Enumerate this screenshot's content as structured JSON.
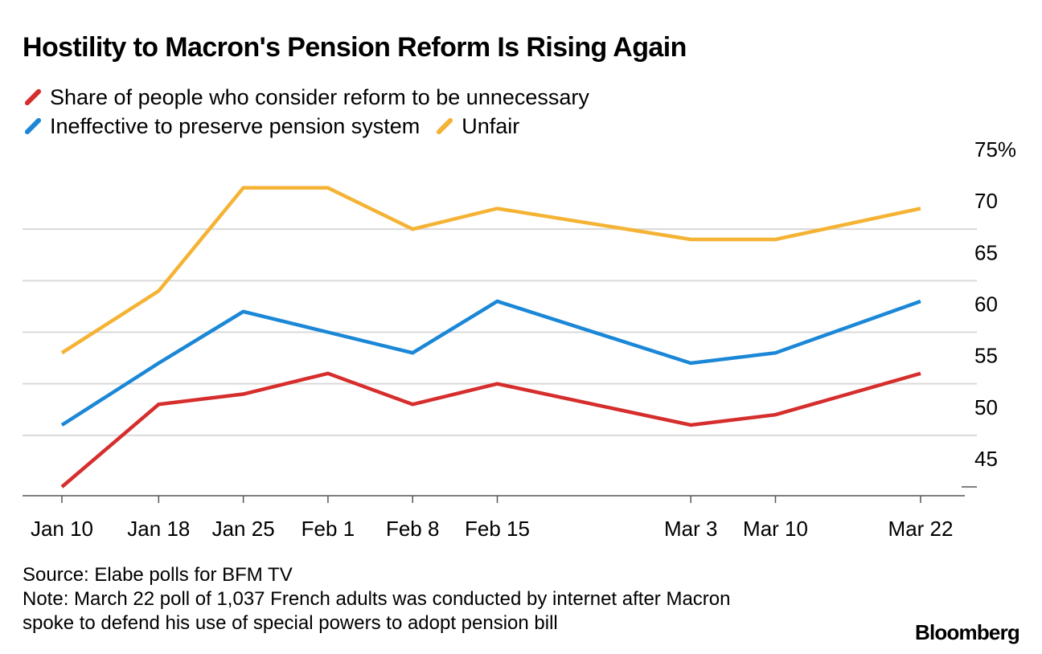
{
  "chart_data": {
    "type": "line",
    "title": "Hostility to Macron's Pension Reform Is Rising Again",
    "categories": [
      "Jan 10",
      "Jan 18",
      "Jan 25",
      "Feb 1",
      "Feb 8",
      "Feb 15",
      "Mar 3",
      "Mar 10",
      "Mar 22"
    ],
    "x_days": [
      0,
      8,
      15,
      22,
      29,
      36,
      52,
      59,
      71
    ],
    "y_ticks": [
      "75%",
      "70",
      "65",
      "60",
      "55",
      "50",
      "45"
    ],
    "y_tick_values": [
      75,
      70,
      65,
      60,
      55,
      50,
      45
    ],
    "ylim": [
      45,
      75
    ],
    "xlabel": "",
    "ylabel": "",
    "series": [
      {
        "name": "Share of people who consider reform to be unnecessary",
        "color": "#d62d2d",
        "values": [
          45,
          53,
          54,
          56,
          53,
          55,
          51,
          52,
          56
        ]
      },
      {
        "name": "Ineffective to preserve pension system",
        "color": "#1b87d7",
        "values": [
          51,
          57,
          62,
          60,
          58,
          63,
          57,
          58,
          63
        ]
      },
      {
        "name": "Unfair",
        "color": "#f5b335",
        "values": [
          58,
          64,
          74,
          74,
          70,
          72,
          69,
          69,
          72
        ]
      }
    ]
  },
  "footer": {
    "source": "Source: Elabe polls for BFM TV",
    "note_line1": "Note: March 22 poll of 1,037 French adults was conducted by internet after Macron",
    "note_line2": "spoke to defend his use of special powers to adopt pension bill"
  },
  "brand": "Bloomberg"
}
